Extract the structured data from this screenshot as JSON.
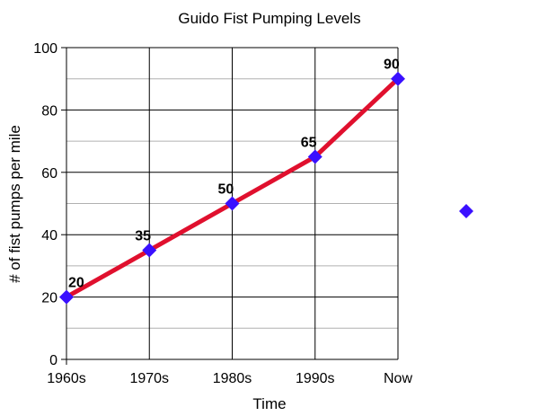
{
  "chart_data": {
    "type": "line",
    "title": "Guido Fist Pumping Levels",
    "xlabel": "Time",
    "ylabel": "# of fist pumps per mile",
    "categories": [
      "1960s",
      "1970s",
      "1980s",
      "1990s",
      "Now"
    ],
    "series": [
      {
        "values": [
          20,
          35,
          50,
          65,
          90
        ]
      }
    ],
    "data_labels": [
      "20",
      "35",
      "50",
      "65",
      "90"
    ],
    "ylim": [
      0,
      100
    ],
    "yticks": [
      0,
      20,
      40,
      60,
      80,
      100
    ],
    "grid": true,
    "legend": "right",
    "colors": {
      "line": "#e0102e",
      "marker": "#3a10ff",
      "grid_major": "#000000",
      "grid_minor": "#b0b0b0"
    }
  }
}
